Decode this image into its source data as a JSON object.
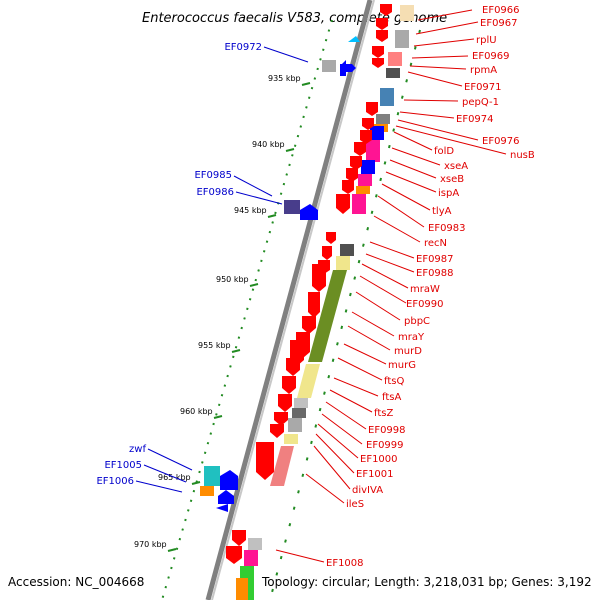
{
  "title": "Enterococcus faecalis V583, complete genome",
  "footer": {
    "accession": "Accession: NC_004668",
    "topology": "Topology: circular; Length: 3,218,031 bp; Genes: 3,192"
  },
  "ticks": [
    "935 kbp",
    "940 kbp",
    "945 kbp",
    "950 kbp",
    "955 kbp",
    "960 kbp",
    "965 kbp",
    "970 kbp"
  ],
  "genes_right": [
    "EF0966",
    "EF0967",
    "rplU",
    "EF0969",
    "rpmA",
    "EF0971",
    "pepQ-1",
    "EF0974",
    "EF0976",
    "nusB",
    "folD",
    "xseA",
    "xseB",
    "ispA",
    "tlyA",
    "EF0983",
    "recN",
    "EF0987",
    "EF0988",
    "mraW",
    "EF0990",
    "pbpC",
    "mraY",
    "murD",
    "murG",
    "ftsQ",
    "ftsA",
    "ftsZ",
    "EF0998",
    "EF0999",
    "EF1000",
    "EF1001",
    "divIVA",
    "ileS",
    "EF1008"
  ],
  "genes_left": [
    "EF0972",
    "EF0985",
    "EF0986",
    "zwf",
    "EF1005",
    "EF1006"
  ],
  "colors": {
    "backbone": "#808080",
    "tick": "#228b22",
    "forward_arrow": "#ff0000",
    "reverse_arrow": "#0000ff",
    "label_right": "#e00000",
    "label_left": "#0000cc",
    "division_green": "#6b8e23",
    "khaki": "#f0e68c"
  }
}
